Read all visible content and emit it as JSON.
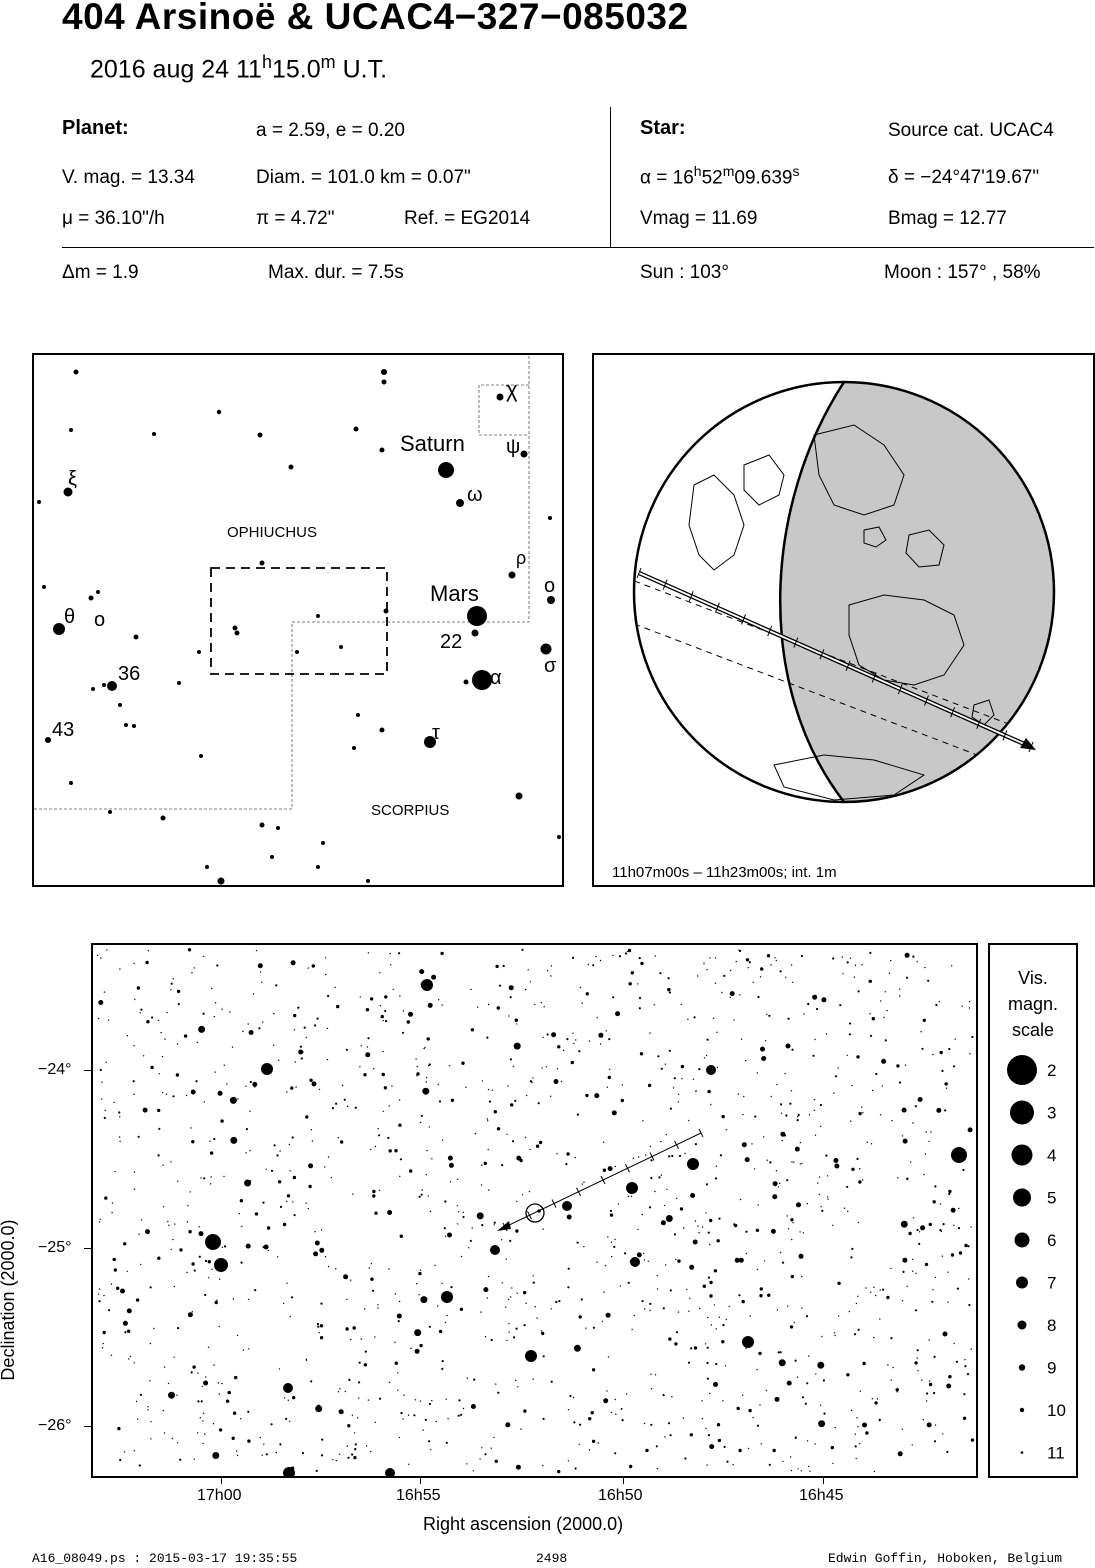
{
  "header": {
    "title": "404 Arsinoë  &  UCAC4−327−085032",
    "date_prefix": "2016 aug 24  11",
    "date_h": "h",
    "date_mid": "15.0",
    "date_m": "m",
    "date_suffix": " U.T."
  },
  "planet": {
    "label": "Planet:",
    "orbit": "a = 2.59, e = 0.20",
    "vmag": "V. mag. = 13.34",
    "diam": "Diam. = 101.0 km = 0.07\"",
    "mu": "μ =  36.10\"/h",
    "pi": "π =  4.72\"",
    "ref": "Ref. = EG2014"
  },
  "star": {
    "label": "Star:",
    "source": "Source cat.  UCAC4",
    "alpha_prefix": "α = 16",
    "alpha_h": "h",
    "alpha_mid": "52",
    "alpha_m": "m",
    "alpha_sec": "09.639",
    "alpha_s": "s",
    "delta": "δ = −24°47'19.67\"",
    "vmag": "Vmag = 11.69",
    "bmag": "Bmag = 12.77"
  },
  "event": {
    "dm": "Δm = 1.9",
    "maxdur": "Max. dur. = 7.5s",
    "sun": "Sun : 103°",
    "moon": "Moon : 157° , 58%"
  },
  "finder": {
    "constellations": [
      "OPHIUCHUS",
      "SCORPIUS"
    ],
    "labels": [
      "χ",
      "Saturn",
      "ψ",
      "ξ",
      "ω",
      "ρ",
      "ο",
      "Mars",
      "ο",
      "θ",
      "22",
      "α",
      "σ",
      "36",
      "43",
      "τ"
    ]
  },
  "globe": {
    "caption": "11h07m00s – 11h23m00s; int.  1m"
  },
  "chart": {
    "ylabel": "Declination (2000.0)",
    "xlabel": "Right ascension (2000.0)",
    "yticks": [
      "−24°",
      "−25°",
      "−26°"
    ],
    "xticks": [
      "17h00",
      "16h55",
      "16h50",
      "16h45"
    ],
    "scale_title": [
      "Vis.",
      "magn.",
      "scale"
    ],
    "scale_mags": [
      "2",
      "3",
      "4",
      "5",
      "6",
      "7",
      "8",
      "9",
      "10",
      "11"
    ]
  },
  "chart_data": {
    "type": "scatter",
    "xlabel": "Right ascension (2000.0)",
    "ylabel": "Declination (2000.0)",
    "x_ticks": [
      "17h00",
      "16h55",
      "16h50",
      "16h45"
    ],
    "y_ticks": [
      "−24°",
      "−25°",
      "−26°"
    ],
    "x_reversed": true,
    "legend_title": "Vis. magn. scale",
    "legend_placement": "right",
    "magnitude_scale": [
      2,
      3,
      4,
      5,
      6,
      7,
      8,
      9,
      10,
      11
    ]
  },
  "footer": {
    "file": "A16_08049.ps : 2015-03-17 19:35:55",
    "page": "2498",
    "author": "Edwin Goffin, Hoboken, Belgium"
  }
}
